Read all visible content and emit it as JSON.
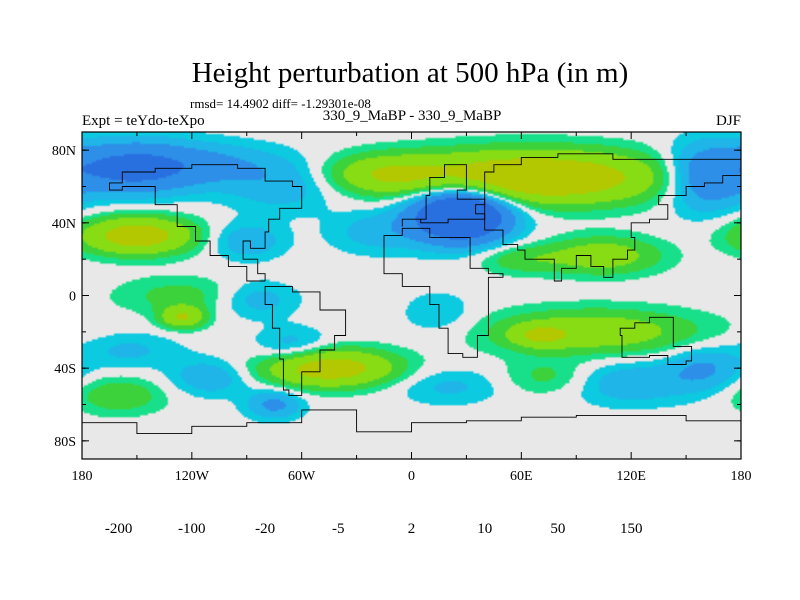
{
  "chart_data": {
    "type": "heatmap",
    "title": "Height perturbation at 500 hPa (in m)",
    "stats": "rmsd= 14.4902 diff= -1.29301e-08",
    "left_label": "Expt = teYdo-teXpo",
    "center_label": "330_9_MaBP - 330_9_MaBP",
    "right_label": "DJF",
    "x_range": [
      -180,
      180
    ],
    "y_range": [
      -90,
      90
    ],
    "x_ticks": [
      {
        "value": -180,
        "label": "180"
      },
      {
        "value": -120,
        "label": "120W"
      },
      {
        "value": -60,
        "label": "60W"
      },
      {
        "value": 0,
        "label": "0"
      },
      {
        "value": 60,
        "label": "60E"
      },
      {
        "value": 120,
        "label": "120E"
      },
      {
        "value": 180,
        "label": "180"
      }
    ],
    "y_ticks": [
      {
        "value": 80,
        "label": "80N"
      },
      {
        "value": 40,
        "label": "40N"
      },
      {
        "value": 0,
        "label": "0"
      },
      {
        "value": -40,
        "label": "40S"
      },
      {
        "value": -80,
        "label": "80S"
      }
    ],
    "colorbar": {
      "colors": [
        "#8a2be2",
        "#6a33d6",
        "#3c32d2",
        "#2a4be0",
        "#2870e0",
        "#2e8fe8",
        "#1fb5e8",
        "#0ccae0",
        "#e8e8e8",
        "#18e08a",
        "#3cd23c",
        "#88dc14",
        "#b4c800",
        "#dcb400",
        "#e69600",
        "#e66e00",
        "#e63c00",
        "#e60000"
      ],
      "levels": [
        -200,
        -150,
        -100,
        -50,
        -20,
        -10,
        -5,
        -2,
        2,
        5,
        10,
        20,
        50,
        100,
        150,
        200
      ],
      "labels": [
        {
          "value": -200,
          "label": "-200"
        },
        {
          "value": -100,
          "label": "-100"
        },
        {
          "value": -20,
          "label": "-20"
        },
        {
          "value": -5,
          "label": "-5"
        },
        {
          "value": 2,
          "label": "2"
        },
        {
          "value": 10,
          "label": "10"
        },
        {
          "value": 50,
          "label": "50"
        },
        {
          "value": 150,
          "label": "150"
        }
      ]
    },
    "field_blobs": [
      {
        "lon": -155,
        "lat": 70,
        "rlon": 35,
        "rlat": 14,
        "amp": -24
      },
      {
        "lon": -110,
        "lat": 72,
        "rlon": 40,
        "rlat": 12,
        "amp": -10
      },
      {
        "lon": -70,
        "lat": 60,
        "rlon": 30,
        "rlat": 14,
        "amp": -8
      },
      {
        "lon": 27,
        "lat": 45,
        "rlon": 26,
        "rlat": 15,
        "amp": -48
      },
      {
        "lon": 160,
        "lat": 65,
        "rlon": 22,
        "rlat": 18,
        "amp": -18
      },
      {
        "lon": -20,
        "lat": 35,
        "rlon": 25,
        "rlat": 12,
        "amp": -7
      },
      {
        "lon": -90,
        "lat": 30,
        "rlon": 20,
        "rlat": 10,
        "amp": -9
      },
      {
        "lon": -150,
        "lat": 33,
        "rlon": 30,
        "rlat": 10,
        "amp": 28
      },
      {
        "lon": 65,
        "lat": 65,
        "rlon": 70,
        "rlat": 14,
        "amp": 35
      },
      {
        "lon": -15,
        "lat": 67,
        "rlon": 30,
        "rlat": 10,
        "amp": 14
      },
      {
        "lon": 105,
        "lat": 22,
        "rlon": 30,
        "rlat": 10,
        "amp": 15
      },
      {
        "lon": 60,
        "lat": 20,
        "rlon": 25,
        "rlat": 8,
        "amp": 8
      },
      {
        "lon": -125,
        "lat": 0,
        "rlon": 35,
        "rlat": 10,
        "amp": 7
      },
      {
        "lon": -125,
        "lat": -12,
        "rlon": 12,
        "rlat": 6,
        "amp": 20
      },
      {
        "lon": -85,
        "lat": -2,
        "rlon": 22,
        "rlat": 10,
        "amp": -8
      },
      {
        "lon": 15,
        "lat": -10,
        "rlon": 20,
        "rlat": 12,
        "amp": -5
      },
      {
        "lon": 100,
        "lat": -20,
        "rlon": 55,
        "rlat": 12,
        "amp": 16
      },
      {
        "lon": 70,
        "lat": -22,
        "rlon": 15,
        "rlat": 6,
        "amp": 14
      },
      {
        "lon": -65,
        "lat": -28,
        "rlon": 20,
        "rlat": 10,
        "amp": -8
      },
      {
        "lon": -155,
        "lat": -30,
        "rlon": 28,
        "rlat": 10,
        "amp": -6
      },
      {
        "lon": -45,
        "lat": -40,
        "rlon": 35,
        "rlat": 10,
        "amp": 28
      },
      {
        "lon": -160,
        "lat": -55,
        "rlon": 25,
        "rlat": 10,
        "amp": 9
      },
      {
        "lon": -110,
        "lat": -45,
        "rlon": 22,
        "rlat": 10,
        "amp": -9
      },
      {
        "lon": -75,
        "lat": -60,
        "rlon": 15,
        "rlat": 8,
        "amp": -12
      },
      {
        "lon": 20,
        "lat": -50,
        "rlon": 30,
        "rlat": 10,
        "amp": -6
      },
      {
        "lon": 75,
        "lat": -45,
        "rlon": 25,
        "rlat": 10,
        "amp": 7
      },
      {
        "lon": 120,
        "lat": -48,
        "rlon": 35,
        "rlat": 12,
        "amp": -9
      },
      {
        "lon": 160,
        "lat": -40,
        "rlon": 20,
        "rlat": 12,
        "amp": -10
      }
    ],
    "coastlines": [
      [
        [
          10,
          55
        ],
        [
          10,
          65
        ],
        [
          18,
          65
        ],
        [
          18,
          72
        ],
        [
          30,
          72
        ],
        [
          30,
          58
        ],
        [
          25,
          53
        ],
        [
          40,
          53
        ],
        [
          40,
          42
        ],
        [
          20,
          40
        ],
        [
          5,
          42
        ],
        [
          -5,
          38
        ],
        [
          -5,
          42
        ],
        [
          8,
          45
        ],
        [
          8,
          55
        ],
        [
          10,
          55
        ]
      ],
      [
        [
          -5,
          33
        ],
        [
          -15,
          22
        ],
        [
          -15,
          12
        ],
        [
          -5,
          5
        ],
        [
          8,
          5
        ],
        [
          10,
          -5
        ],
        [
          15,
          -18
        ],
        [
          20,
          -32
        ],
        [
          28,
          -34
        ],
        [
          36,
          -22
        ],
        [
          42,
          -10
        ],
        [
          42,
          10
        ],
        [
          50,
          12
        ],
        [
          42,
          15
        ],
        [
          32,
          32
        ],
        [
          10,
          37
        ],
        [
          -5,
          36
        ],
        [
          -5,
          33
        ]
      ],
      [
        [
          -65,
          5
        ],
        [
          -80,
          -5
        ],
        [
          -76,
          -18
        ],
        [
          -72,
          -35
        ],
        [
          -70,
          -52
        ],
        [
          -67,
          -55
        ],
        [
          -60,
          -42
        ],
        [
          -50,
          -30
        ],
        [
          -42,
          -22
        ],
        [
          -36,
          -8
        ],
        [
          -50,
          2
        ],
        [
          -65,
          5
        ]
      ],
      [
        [
          -80,
          8
        ],
        [
          -90,
          16
        ],
        [
          -100,
          22
        ],
        [
          -110,
          30
        ],
        [
          -118,
          38
        ],
        [
          -128,
          50
        ],
        [
          -140,
          60
        ],
        [
          -158,
          58
        ],
        [
          -165,
          62
        ],
        [
          -158,
          68
        ],
        [
          -140,
          70
        ],
        [
          -120,
          72
        ],
        [
          -95,
          70
        ],
        [
          -80,
          63
        ],
        [
          -65,
          60
        ],
        [
          -60,
          48
        ],
        [
          -72,
          42
        ],
        [
          -78,
          35
        ],
        [
          -80,
          26
        ],
        [
          -88,
          30
        ],
        [
          -92,
          20
        ],
        [
          -84,
          12
        ],
        [
          -80,
          8
        ]
      ],
      [
        [
          114,
          -22
        ],
        [
          115,
          -34
        ],
        [
          130,
          -33
        ],
        [
          140,
          -38
        ],
        [
          150,
          -36
        ],
        [
          153,
          -28
        ],
        [
          143,
          -12
        ],
        [
          136,
          -12
        ],
        [
          130,
          -15
        ],
        [
          122,
          -18
        ],
        [
          114,
          -22
        ]
      ],
      [
        [
          40,
          36
        ],
        [
          50,
          28
        ],
        [
          58,
          25
        ],
        [
          62,
          20
        ],
        [
          72,
          20
        ],
        [
          78,
          8
        ],
        [
          82,
          15
        ],
        [
          90,
          22
        ],
        [
          98,
          16
        ],
        [
          105,
          10
        ],
        [
          110,
          20
        ],
        [
          118,
          25
        ],
        [
          122,
          32
        ],
        [
          120,
          40
        ],
        [
          130,
          42
        ],
        [
          140,
          50
        ],
        [
          135,
          55
        ],
        [
          150,
          60
        ],
        [
          160,
          62
        ],
        [
          170,
          66
        ],
        [
          180,
          68
        ],
        [
          180,
          75
        ],
        [
          140,
          75
        ],
        [
          110,
          78
        ],
        [
          80,
          76
        ],
        [
          60,
          72
        ],
        [
          45,
          68
        ],
        [
          40,
          60
        ],
        [
          40,
          50
        ],
        [
          35,
          45
        ],
        [
          40,
          36
        ]
      ],
      [
        [
          -180,
          -70
        ],
        [
          -150,
          -76
        ],
        [
          -120,
          -72
        ],
        [
          -90,
          -70
        ],
        [
          -60,
          -63
        ],
        [
          -30,
          -75
        ],
        [
          0,
          -70
        ],
        [
          30,
          -69
        ],
        [
          60,
          -67
        ],
        [
          90,
          -66
        ],
        [
          120,
          -66
        ],
        [
          150,
          -69
        ],
        [
          180,
          -72
        ],
        [
          180,
          -90
        ],
        [
          -180,
          -90
        ],
        [
          -180,
          -70
        ]
      ]
    ]
  }
}
